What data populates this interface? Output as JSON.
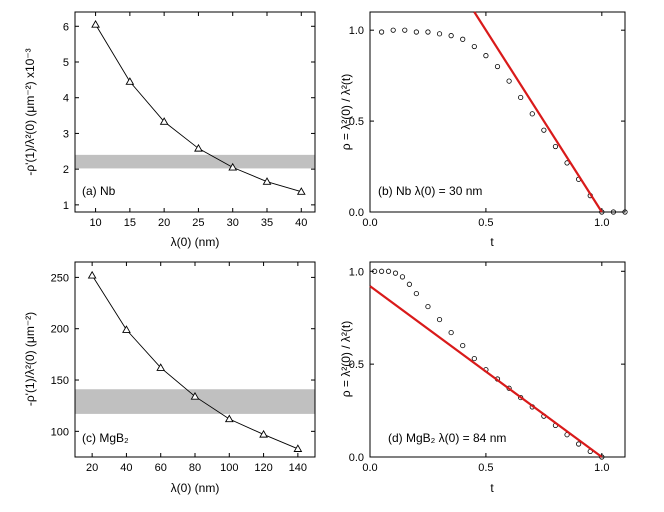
{
  "chart_data": [
    {
      "type": "line",
      "panel_label": "(a) Nb",
      "xlabel": "λ(0) (nm)",
      "ylabel": "-ρ'(1)/λ²(0) (μm⁻²) x10⁻³",
      "xlim": [
        7,
        42
      ],
      "ylim": [
        0.8,
        6.4
      ],
      "xticks": [
        10,
        15,
        20,
        25,
        30,
        35,
        40
      ],
      "yticks": [
        1,
        2,
        3,
        4,
        5,
        6
      ],
      "x": [
        10,
        15,
        20,
        25,
        30,
        35,
        40
      ],
      "y": [
        6.05,
        4.45,
        3.33,
        2.58,
        2.05,
        1.65,
        1.37
      ],
      "band": [
        2.02,
        2.4
      ],
      "marker": "open-triangle",
      "grid": false
    },
    {
      "type": "scatter",
      "panel_label": "(b) Nb  λ(0) = 30 nm",
      "xlabel": "t",
      "ylabel": "ρ = λ²(0) / λ²(t)",
      "xlim": [
        0,
        1.1
      ],
      "ylim": [
        0,
        1.1
      ],
      "xticks": [
        0.0,
        0.5,
        1.0
      ],
      "yticks": [
        0.0,
        0.5,
        1.0
      ],
      "series": [
        {
          "x": [
            0.05,
            0.1,
            0.15,
            0.2,
            0.25,
            0.3,
            0.35,
            0.4,
            0.45,
            0.5,
            0.55,
            0.6,
            0.65,
            0.7,
            0.75,
            0.8,
            0.85,
            0.9,
            0.95,
            1.0,
            1.05,
            1.1
          ],
          "y": [
            0.99,
            1.0,
            1.0,
            0.99,
            0.99,
            0.98,
            0.97,
            0.95,
            0.91,
            0.86,
            0.8,
            0.72,
            0.63,
            0.54,
            0.45,
            0.36,
            0.27,
            0.18,
            0.09,
            0.0,
            0.0,
            0.0
          ]
        }
      ],
      "fit_line": {
        "x": [
          0.4,
          1.0
        ],
        "y": [
          1.2,
          0.0
        ]
      },
      "colors": {
        "fit": "#d91a1a",
        "data": "#000000"
      },
      "grid": false
    },
    {
      "type": "line",
      "panel_label": "(c) MgB₂",
      "xlabel": "λ(0) (nm)",
      "ylabel": "-ρ'(1)/λ²(0) (μm⁻²)",
      "xlim": [
        10,
        150
      ],
      "ylim": [
        75,
        265
      ],
      "xticks": [
        20,
        40,
        60,
        80,
        100,
        120,
        140
      ],
      "yticks": [
        100,
        150,
        200,
        250
      ],
      "x": [
        20,
        40,
        60,
        80,
        100,
        120,
        140
      ],
      "y": [
        252,
        199,
        162,
        134,
        112,
        97,
        83
      ],
      "band": [
        117,
        141
      ],
      "marker": "open-triangle",
      "grid": false
    },
    {
      "type": "scatter",
      "panel_label": "(d) MgB₂  λ(0) = 84 nm",
      "xlabel": "t",
      "ylabel": "ρ = λ²(0) / λ²(t)",
      "xlim": [
        0,
        1.1
      ],
      "ylim": [
        0,
        1.05
      ],
      "xticks": [
        0.0,
        0.5,
        1.0
      ],
      "yticks": [
        0.0,
        0.5,
        1.0
      ],
      "series": [
        {
          "x": [
            0.02,
            0.05,
            0.08,
            0.11,
            0.14,
            0.17,
            0.2,
            0.25,
            0.3,
            0.35,
            0.4,
            0.45,
            0.5,
            0.55,
            0.6,
            0.65,
            0.7,
            0.75,
            0.8,
            0.85,
            0.9,
            0.95,
            1.0
          ],
          "y": [
            1.0,
            1.0,
            1.0,
            0.99,
            0.97,
            0.93,
            0.88,
            0.81,
            0.74,
            0.67,
            0.6,
            0.53,
            0.47,
            0.42,
            0.37,
            0.32,
            0.27,
            0.22,
            0.17,
            0.12,
            0.07,
            0.03,
            0.0
          ]
        }
      ],
      "fit_line": {
        "x": [
          0.0,
          1.0
        ],
        "y": [
          0.92,
          0.0
        ]
      },
      "colors": {
        "fit": "#d91a1a",
        "data": "#000000"
      },
      "grid": false
    }
  ],
  "colors": {
    "band": "#c0c0c0",
    "axis": "#000000"
  }
}
